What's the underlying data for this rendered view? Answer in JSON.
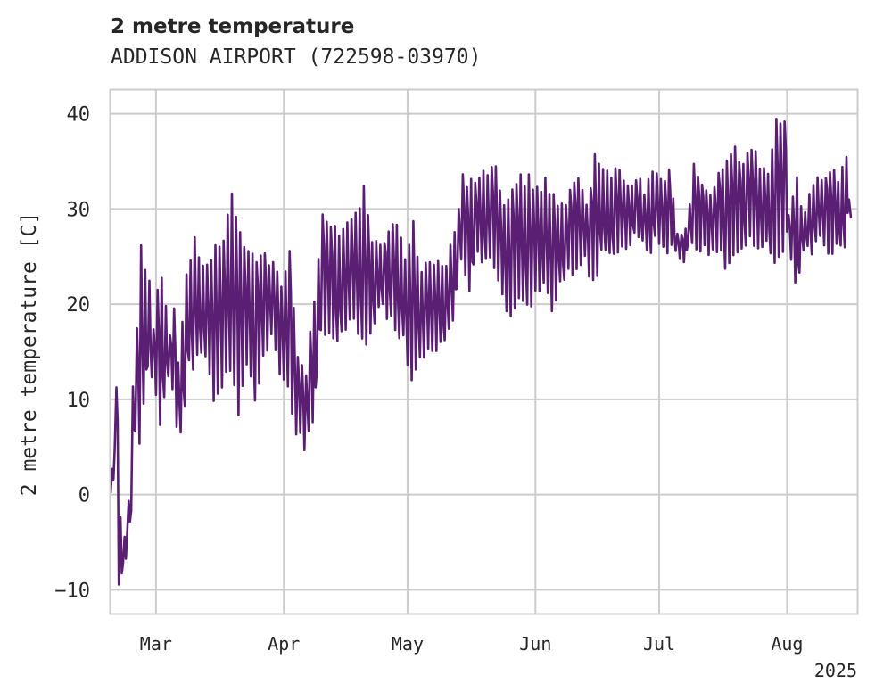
{
  "chart_data": {
    "type": "line",
    "title": "2 metre temperature",
    "subtitle": "ADDISON AIRPORT (722598-03970)",
    "xlabel": "",
    "ylabel": "2 metre temperature [C]",
    "x_year_label": "2025",
    "xlim": [
      "2025-02-18",
      "2025-08-18"
    ],
    "ylim": [
      -12.5,
      42.5
    ],
    "x_ticks": [
      {
        "date": "2025-03-01",
        "label": "Mar"
      },
      {
        "date": "2025-04-01",
        "label": "Apr"
      },
      {
        "date": "2025-05-01",
        "label": "May"
      },
      {
        "date": "2025-06-01",
        "label": "Jun"
      },
      {
        "date": "2025-07-01",
        "label": "Jul"
      },
      {
        "date": "2025-08-01",
        "label": "Aug"
      }
    ],
    "y_ticks": [
      -10,
      0,
      10,
      20,
      30,
      40
    ],
    "y_tick_labels": [
      "−10",
      "0",
      "10",
      "20",
      "30",
      "40"
    ],
    "grid": true,
    "legend": "none",
    "line_color": "#5a1f73",
    "series": [
      {
        "x": [
          "2025-02-18",
          "2025-02-19",
          "2025-02-20",
          "2025-02-21",
          "2025-02-22",
          "2025-02-23",
          "2025-02-24",
          "2025-02-25",
          "2025-02-26",
          "2025-02-27",
          "2025-02-28",
          "2025-03-01",
          "2025-03-02",
          "2025-03-04",
          "2025-03-05",
          "2025-03-06",
          "2025-03-07",
          "2025-03-08",
          "2025-03-09",
          "2025-03-10",
          "2025-03-11",
          "2025-03-13",
          "2025-03-15",
          "2025-03-17",
          "2025-03-19",
          "2025-03-21",
          "2025-03-23",
          "2025-03-25",
          "2025-03-27",
          "2025-03-29",
          "2025-03-31",
          "2025-04-02",
          "2025-04-04",
          "2025-04-06",
          "2025-04-08",
          "2025-04-10",
          "2025-04-12",
          "2025-04-14",
          "2025-04-16",
          "2025-04-18",
          "2025-04-20",
          "2025-04-22",
          "2025-04-24",
          "2025-04-26",
          "2025-04-28",
          "2025-04-30",
          "2025-05-02",
          "2025-05-04",
          "2025-05-06",
          "2025-05-08",
          "2025-05-10",
          "2025-05-12",
          "2025-05-14",
          "2025-05-16",
          "2025-05-18",
          "2025-05-20",
          "2025-05-22",
          "2025-05-24",
          "2025-05-26",
          "2025-05-28",
          "2025-05-30",
          "2025-06-01",
          "2025-06-03",
          "2025-06-05",
          "2025-06-07",
          "2025-06-09",
          "2025-06-11",
          "2025-06-13",
          "2025-06-15",
          "2025-06-17",
          "2025-06-19",
          "2025-06-21",
          "2025-06-23",
          "2025-06-25",
          "2025-06-27",
          "2025-06-29",
          "2025-07-01",
          "2025-07-03",
          "2025-07-05",
          "2025-07-07",
          "2025-07-09",
          "2025-07-11",
          "2025-07-13",
          "2025-07-15",
          "2025-07-17",
          "2025-07-19",
          "2025-07-21",
          "2025-07-23",
          "2025-07-25",
          "2025-07-27",
          "2025-07-29",
          "2025-07-31",
          "2025-08-01",
          "2025-08-03",
          "2025-08-05",
          "2025-08-07",
          "2025-08-09",
          "2025-08-11",
          "2025-08-13",
          "2025-08-15",
          "2025-08-16"
        ],
        "y_min": [
          0,
          4,
          -10,
          -8,
          -5,
          -1,
          6,
          6,
          10,
          13,
          12,
          10,
          8,
          12,
          11,
          7,
          6,
          9,
          14,
          13,
          15,
          14,
          10,
          12,
          13,
          9,
          14,
          10,
          14,
          17,
          12,
          11,
          7,
          5,
          8,
          17,
          17,
          16,
          18,
          19,
          16,
          17,
          20,
          19,
          18,
          16,
          12,
          14,
          16,
          15,
          16,
          18,
          24,
          22,
          25,
          25,
          24,
          21,
          19,
          20,
          20,
          21,
          22,
          20,
          22,
          24,
          23,
          25,
          22,
          25,
          25,
          26,
          26,
          27,
          26,
          26,
          27,
          26,
          26,
          25,
          27,
          26,
          25,
          26,
          24,
          25,
          26,
          27,
          26,
          26,
          25,
          26,
          27,
          22,
          26,
          25,
          27,
          26,
          26,
          26,
          29
        ],
        "y_max": [
          3,
          11,
          -3,
          -4,
          0,
          12,
          17,
          26,
          23,
          23,
          17,
          21,
          23,
          17,
          20,
          14,
          18,
          23,
          25,
          27,
          25,
          24,
          26,
          27,
          32,
          27,
          26,
          25,
          25,
          24,
          22,
          25,
          15,
          13,
          20,
          30,
          28,
          27,
          28,
          29,
          32,
          27,
          26,
          28,
          29,
          25,
          28,
          23,
          25,
          24,
          24,
          27,
          33,
          33,
          34,
          34,
          34,
          31,
          32,
          33,
          33,
          32,
          33,
          31,
          30,
          32,
          33,
          30,
          35,
          34,
          34,
          34,
          33,
          33,
          32,
          34,
          33,
          34,
          28,
          28,
          34,
          33,
          31,
          34,
          35,
          36,
          35,
          36,
          35,
          34,
          40,
          39,
          29,
          33,
          29,
          33,
          33,
          34,
          33,
          36,
          31
        ]
      }
    ]
  }
}
